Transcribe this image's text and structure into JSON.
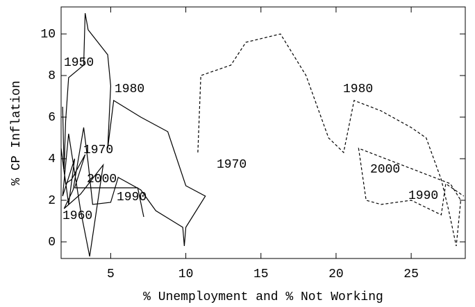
{
  "chart_data": {
    "type": "line",
    "xlabel": "% Unemployment and % Not Working",
    "ylabel": "% CP Inflation",
    "xlim": [
      1.7,
      28.6
    ],
    "ylim": [
      -0.8,
      11.3
    ],
    "xticks": [
      5,
      10,
      15,
      20,
      25
    ],
    "yticks": [
      0,
      2,
      4,
      6,
      8,
      10
    ],
    "annotations": [
      "1950",
      "1980",
      "1970",
      "1960",
      "2000",
      "1990",
      "1970",
      "1980",
      "2000",
      "1990"
    ],
    "series": [
      {
        "color": "#000000",
        "dashed": false,
        "x": [
          1.8,
          1.9,
          2.0,
          2.2,
          3.2,
          3.3,
          3.5,
          4.8,
          5.0,
          4.8,
          5.2,
          7.0,
          8.8,
          10.0,
          11.3,
          10.0,
          9.9,
          9.8,
          8.0,
          7.0,
          5.5,
          5.0,
          3.8,
          3.5,
          3.2,
          2.5,
          1.9,
          3.0,
          4.5,
          3.6,
          3.0,
          2.2,
          1.8,
          2.6,
          2.2,
          1.7,
          2.0,
          2.4,
          3.3,
          2.6,
          6.8,
          7.2
        ],
        "values": [
          6.5,
          3.5,
          5.8,
          7.9,
          8.5,
          11.0,
          10.2,
          9.0,
          7.5,
          4.5,
          6.8,
          6.0,
          5.3,
          2.7,
          2.2,
          0.7,
          -0.2,
          0.7,
          1.5,
          2.5,
          3.1,
          1.9,
          1.8,
          3.8,
          5.5,
          2.5,
          1.6,
          2.3,
          3.7,
          -0.7,
          1.5,
          5.2,
          2.2,
          4.0,
          1.8,
          4.5,
          2.8,
          3.0,
          4.2,
          2.6,
          2.6,
          1.2
        ]
      },
      {
        "color": "#000000",
        "dashed": true,
        "x": [
          10.8,
          11.0,
          13.0,
          14.0,
          16.3,
          18.0,
          19.5,
          20.5,
          21.2,
          23.0,
          25.0,
          26.0,
          27.0,
          27.5,
          28.0,
          28.3,
          27.6,
          21.5,
          22.0,
          23.0,
          25.0,
          27.0,
          27.3,
          28.5
        ],
        "values": [
          4.3,
          8.0,
          8.5,
          9.6,
          10.0,
          8.0,
          5.0,
          4.3,
          6.8,
          6.3,
          5.5,
          5.0,
          3.0,
          1.5,
          -0.2,
          2.0,
          2.8,
          4.5,
          2.0,
          1.8,
          2.0,
          1.3,
          2.8,
          2.2
        ]
      }
    ]
  }
}
